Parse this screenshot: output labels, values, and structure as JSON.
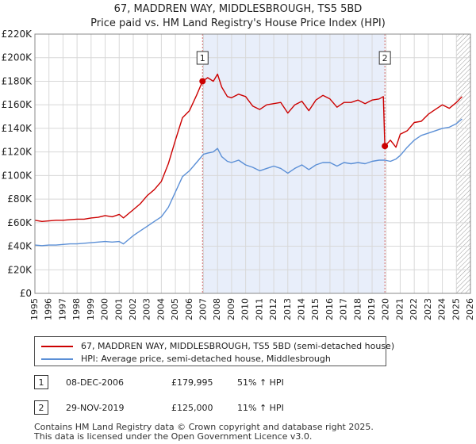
{
  "title_line1": "67, MADDREN WAY, MIDDLESBROUGH, TS5 5BD",
  "title_line2": "Price paid vs. HM Land Registry's House Price Index (HPI)",
  "chart_data": {
    "type": "line",
    "title": "67, MADDREN WAY, MIDDLESBROUGH, TS5 5BD — Price paid vs. HM Land Registry's House Price Index (HPI)",
    "xlabel": "",
    "ylabel": "",
    "xlim": [
      1995,
      2026
    ],
    "ylim": [
      0,
      220000
    ],
    "x_ticks": [
      1995,
      1996,
      1997,
      1998,
      1999,
      2000,
      2001,
      2002,
      2003,
      2004,
      2005,
      2006,
      2007,
      2008,
      2009,
      2010,
      2011,
      2012,
      2013,
      2014,
      2015,
      2016,
      2017,
      2018,
      2019,
      2020,
      2021,
      2022,
      2023,
      2024,
      2025,
      2026
    ],
    "y_ticks": [
      {
        "value": 0,
        "label": "£0"
      },
      {
        "value": 20000,
        "label": "£20K"
      },
      {
        "value": 40000,
        "label": "£40K"
      },
      {
        "value": 60000,
        "label": "£60K"
      },
      {
        "value": 80000,
        "label": "£80K"
      },
      {
        "value": 100000,
        "label": "£100K"
      },
      {
        "value": 120000,
        "label": "£120K"
      },
      {
        "value": 140000,
        "label": "£140K"
      },
      {
        "value": 160000,
        "label": "£160K"
      },
      {
        "value": 180000,
        "label": "£180K"
      },
      {
        "value": 200000,
        "label": "£200K"
      },
      {
        "value": 220000,
        "label": "£220K"
      }
    ],
    "grid": true,
    "ownership_shading": {
      "from": 2006.93,
      "to": 2019.91,
      "color": "#e8eefa"
    },
    "forecast_hatch_from": 2025.0,
    "series": [
      {
        "name": "67, MADDREN WAY, MIDDLESBROUGH, TS5 5BD (semi-detached house)",
        "color": "#cc0000",
        "x": [
          1995.0,
          1995.5,
          1996.0,
          1996.5,
          1997.0,
          1997.5,
          1998.0,
          1998.5,
          1999.0,
          1999.5,
          2000.0,
          2000.5,
          2001.0,
          2001.3,
          2001.7,
          2002.0,
          2002.5,
          2003.0,
          2003.5,
          2004.0,
          2004.5,
          2005.0,
          2005.5,
          2006.0,
          2006.5,
          2006.93,
          2007.3,
          2007.7,
          2008.0,
          2008.3,
          2008.7,
          2009.0,
          2009.5,
          2010.0,
          2010.5,
          2011.0,
          2011.5,
          2012.0,
          2012.5,
          2013.0,
          2013.5,
          2014.0,
          2014.5,
          2015.0,
          2015.5,
          2016.0,
          2016.5,
          2017.0,
          2017.5,
          2018.0,
          2018.5,
          2019.0,
          2019.5,
          2019.8,
          2019.91,
          2020.3,
          2020.7,
          2021.0,
          2021.5,
          2022.0,
          2022.5,
          2023.0,
          2023.5,
          2024.0,
          2024.5,
          2025.0,
          2025.4
        ],
        "values": [
          62000,
          61000,
          61500,
          62000,
          62000,
          62500,
          63000,
          63000,
          64000,
          64500,
          66000,
          65000,
          67000,
          64000,
          68000,
          71000,
          76000,
          83000,
          88000,
          95000,
          110000,
          130000,
          149000,
          155000,
          168000,
          179995,
          183000,
          180000,
          186000,
          175000,
          167000,
          166000,
          169000,
          167000,
          159000,
          156000,
          160000,
          161000,
          162000,
          153000,
          160000,
          163000,
          155000,
          164000,
          168000,
          165000,
          158000,
          162000,
          162000,
          164000,
          161000,
          164000,
          165000,
          167000,
          125000,
          130000,
          124000,
          135000,
          138000,
          145000,
          146000,
          152000,
          156000,
          160000,
          157000,
          162000,
          167000
        ]
      },
      {
        "name": "HPI: Average price, semi-detached house, Middlesbrough",
        "color": "#5b8fd6",
        "x": [
          1995.0,
          1995.5,
          1996.0,
          1996.5,
          1997.0,
          1997.5,
          1998.0,
          1998.5,
          1999.0,
          1999.5,
          2000.0,
          2000.5,
          2001.0,
          2001.3,
          2001.7,
          2002.0,
          2002.5,
          2003.0,
          2003.5,
          2004.0,
          2004.5,
          2005.0,
          2005.5,
          2006.0,
          2006.5,
          2007.0,
          2007.3,
          2007.7,
          2008.0,
          2008.3,
          2008.7,
          2009.0,
          2009.5,
          2010.0,
          2010.5,
          2011.0,
          2011.5,
          2012.0,
          2012.5,
          2013.0,
          2013.5,
          2014.0,
          2014.5,
          2015.0,
          2015.5,
          2016.0,
          2016.5,
          2017.0,
          2017.5,
          2018.0,
          2018.5,
          2019.0,
          2019.5,
          2019.9,
          2020.3,
          2020.7,
          2021.0,
          2021.5,
          2022.0,
          2022.5,
          2023.0,
          2023.5,
          2024.0,
          2024.5,
          2025.0,
          2025.4
        ],
        "values": [
          41000,
          40500,
          41000,
          41000,
          41500,
          42000,
          42000,
          42500,
          43000,
          43500,
          44000,
          43500,
          44000,
          42000,
          46000,
          49000,
          53000,
          57000,
          61000,
          65000,
          73000,
          86000,
          99000,
          104000,
          111000,
          118000,
          119000,
          120000,
          123000,
          116000,
          112000,
          111000,
          113000,
          109000,
          107000,
          104000,
          106000,
          108000,
          106000,
          102000,
          106000,
          109000,
          105000,
          109000,
          111000,
          111000,
          108000,
          111000,
          110000,
          111000,
          110000,
          112000,
          113000,
          113000,
          112000,
          114000,
          117000,
          124000,
          130000,
          134000,
          136000,
          138000,
          140000,
          141000,
          144000,
          148000
        ]
      }
    ],
    "sales": [
      {
        "label": "1",
        "x": 2006.93,
        "value": 179995
      },
      {
        "label": "2",
        "x": 2019.91,
        "value": 125000
      }
    ]
  },
  "legend": {
    "items": [
      {
        "label": "67, MADDREN WAY, MIDDLESBROUGH, TS5 5BD (semi-detached house)",
        "color": "#cc0000"
      },
      {
        "label": "HPI: Average price, semi-detached house, Middlesbrough",
        "color": "#5b8fd6"
      }
    ]
  },
  "sales_table": [
    {
      "num": "1",
      "date": "08-DEC-2006",
      "price": "£179,995",
      "hpi": "51% ↑ HPI"
    },
    {
      "num": "2",
      "date": "29-NOV-2019",
      "price": "£125,000",
      "hpi": "11% ↑ HPI"
    }
  ],
  "footer": {
    "line1": "Contains HM Land Registry data © Crown copyright and database right 2025.",
    "line2": "This data is licensed under the Open Government Licence v3.0."
  }
}
